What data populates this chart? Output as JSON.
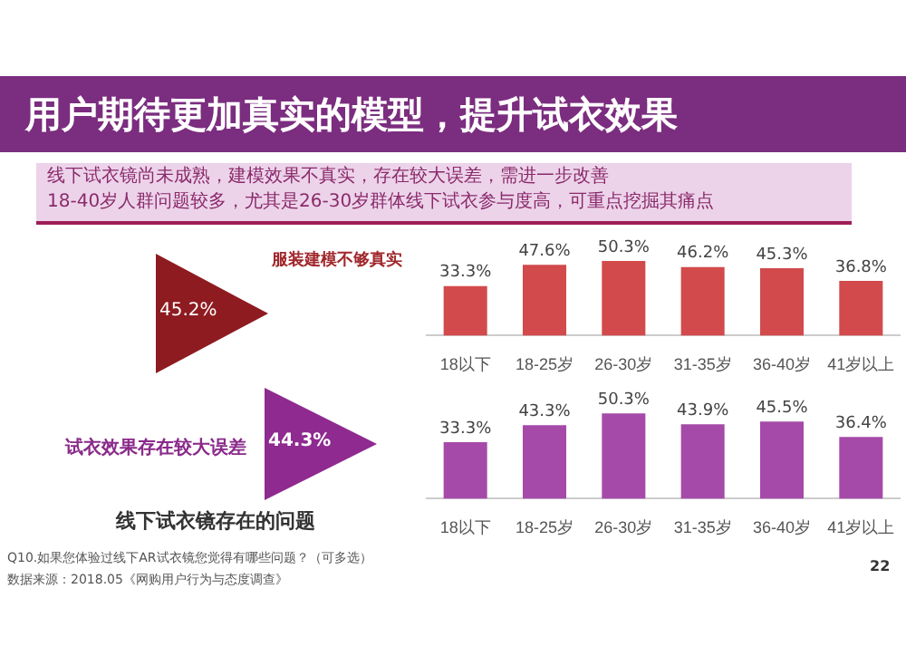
{
  "chart_data": [
    {
      "type": "bar",
      "title": "用户期待更加真实的模型，提升试衣效果",
      "subtitle": "线下试衣镜尚未成熟，建模效果不真实，存在较大误差，需进一步改善\n18-40岁人群问题较多，尤其是26-30岁群体线下试衣参与度高，可重点挖掘其痛点",
      "categories": [
        "18以下",
        "18-25岁",
        "26-30岁",
        "31-35岁",
        "36-40岁",
        "41岁以上"
      ],
      "values": [
        33.3,
        47.6,
        50.3,
        46.2,
        45.3,
        36.8
      ],
      "value_labels": [
        "33.3%",
        "47.6%",
        "50.3%",
        "46.2%",
        "45.3%",
        "36.8%"
      ],
      "color": "#d24a4c",
      "annotations": [
        "服装建模不够真实",
        "45.2%"
      ]
    },
    {
      "type": "bar",
      "categories": [
        "18以下",
        "18-25岁",
        "26-30岁",
        "31-35岁",
        "36-40岁",
        "41岁以上"
      ],
      "values": [
        33.3,
        43.3,
        50.3,
        43.9,
        45.5,
        36.4
      ],
      "value_labels": [
        "33.3%",
        "43.3%",
        "50.3%",
        "43.9%",
        "45.5%",
        "36.4%"
      ],
      "color": "#a54aa8",
      "annotations": [
        "试衣效果存在较大误差",
        "44.3%",
        "线下试衣镜存在的问题",
        "Q10.如果您体验过线下AR试衣镜您觉得有哪些问题？（可多选）",
        "数据来源：2018.05《网购用户行为与态度调查》",
        "22"
      ]
    }
  ]
}
